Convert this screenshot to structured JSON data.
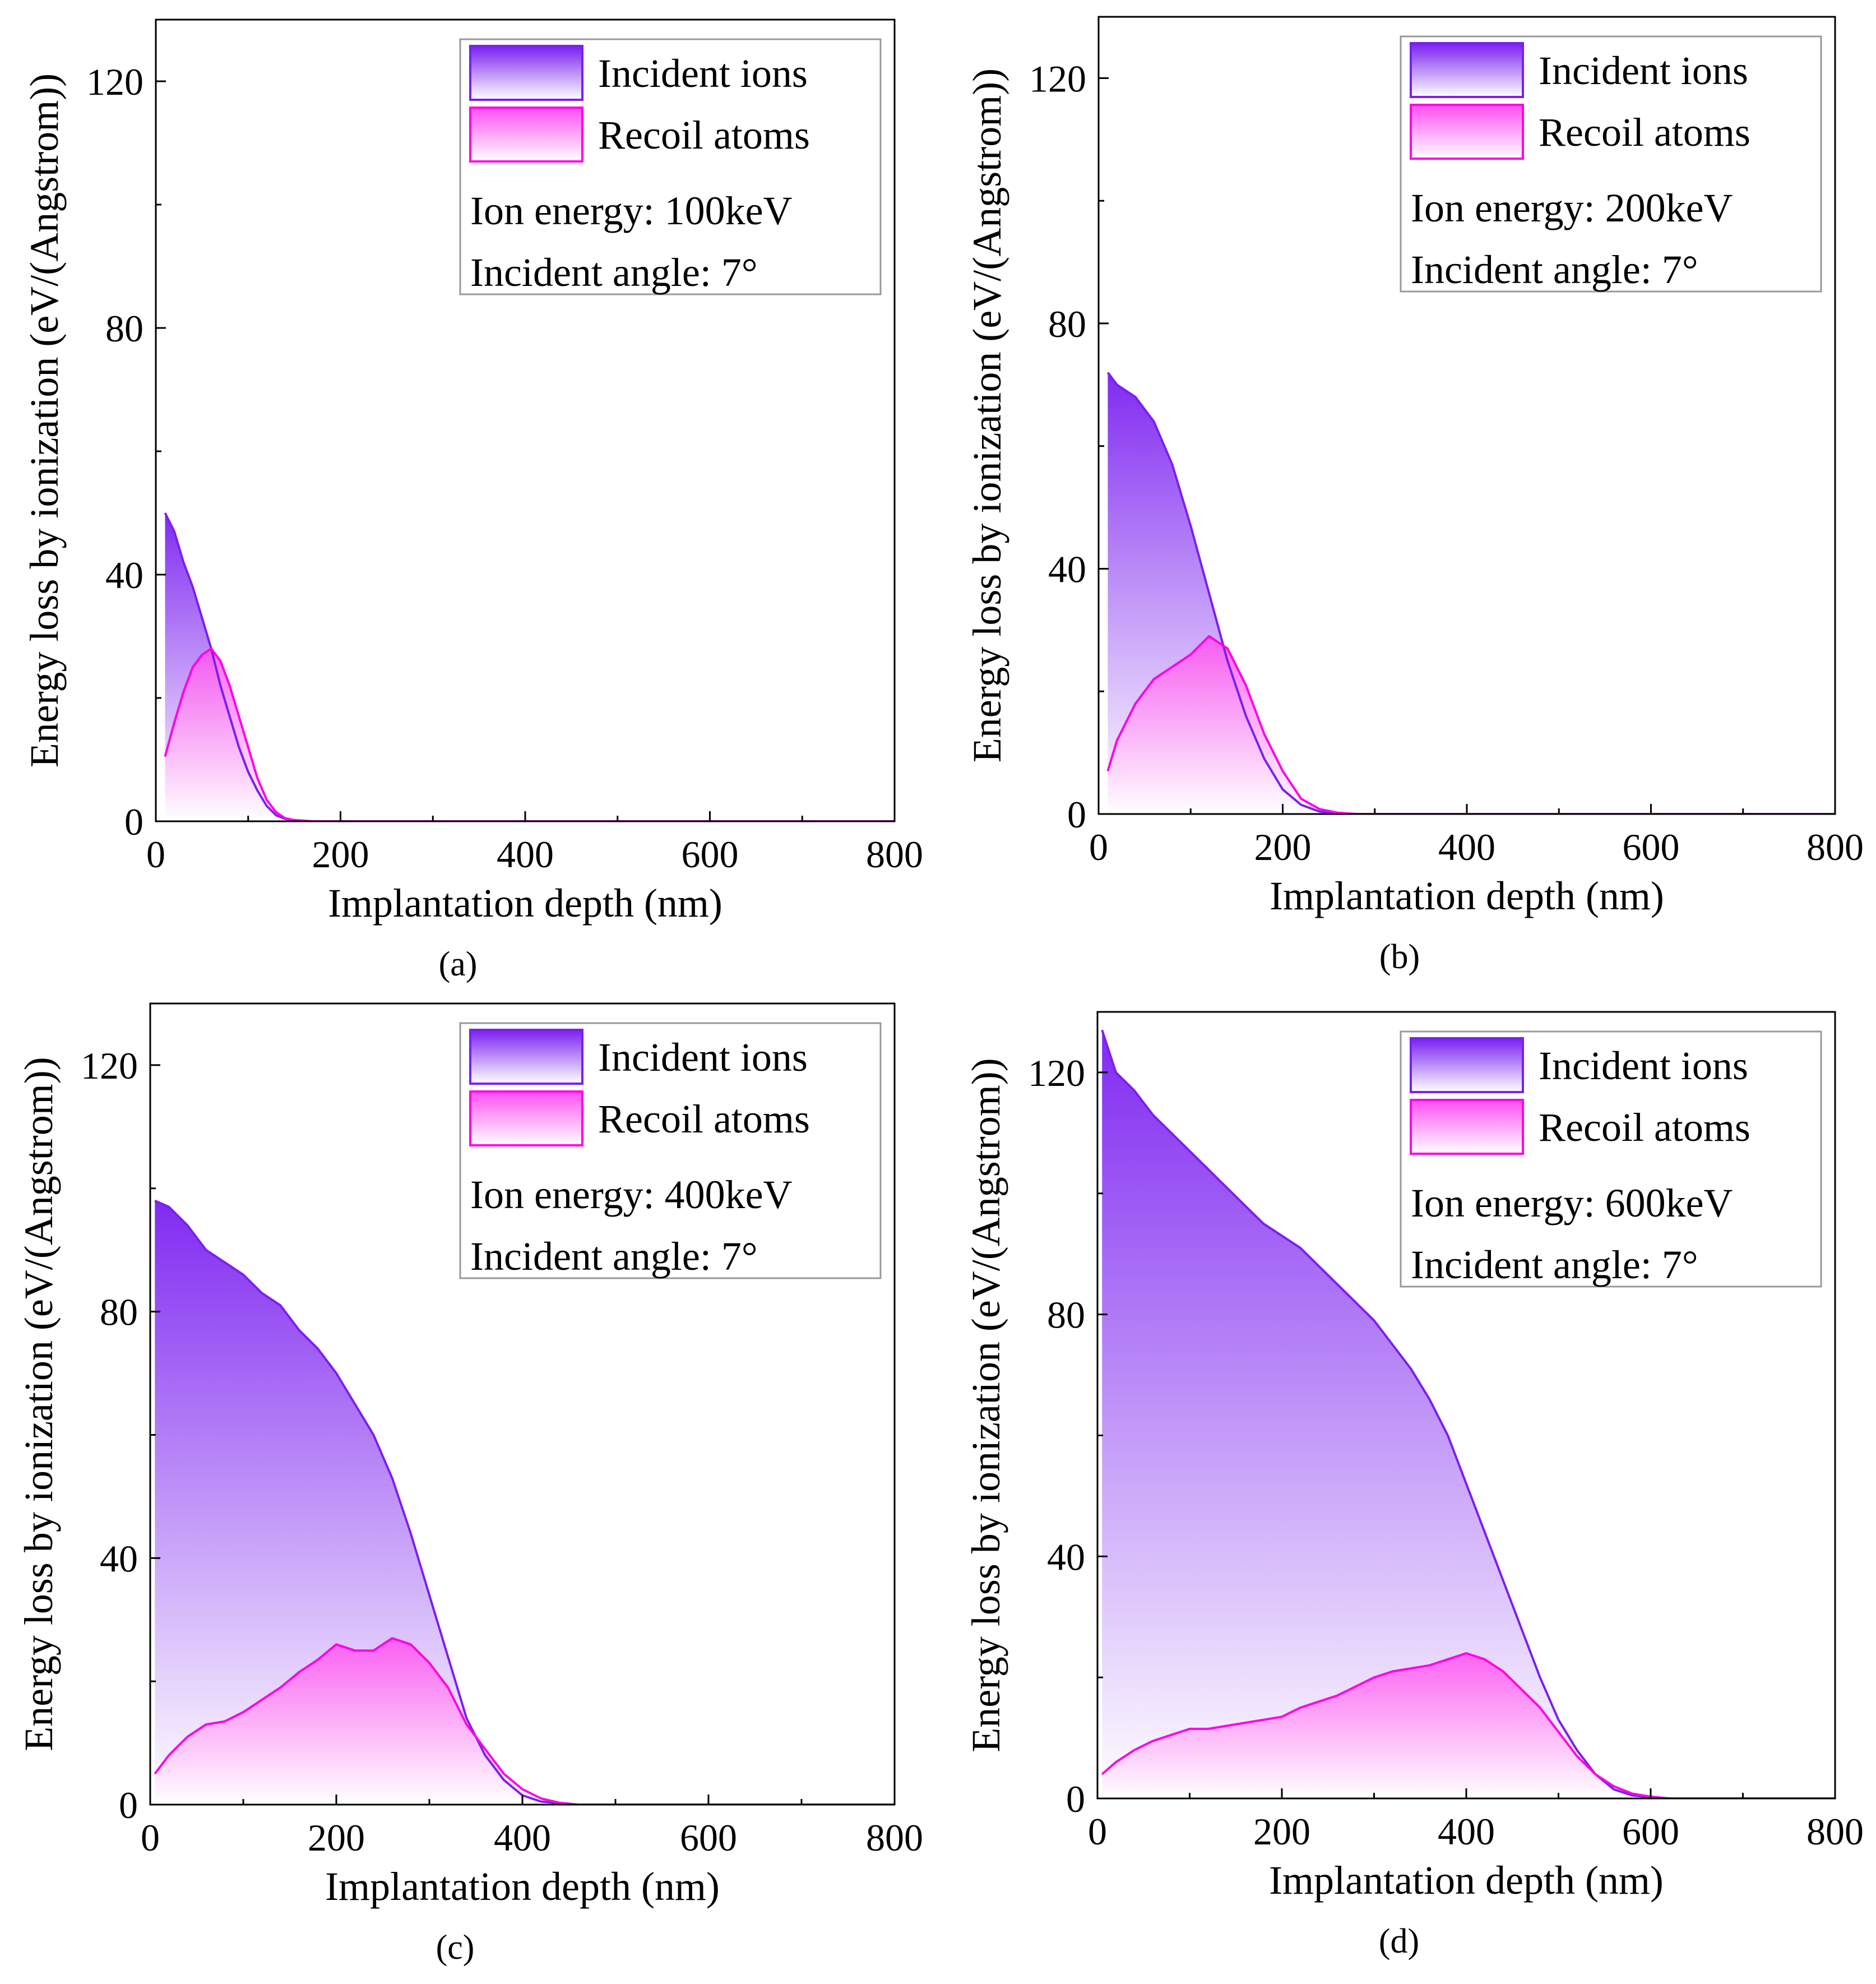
{
  "colors": {
    "incident_line": "#7a1ff0",
    "incident_fill_top": "#7a1ff0",
    "incident_fill_bottom": "#ffffff",
    "recoil_line": "#ff00e6",
    "recoil_fill_top": "#ff4ef0",
    "recoil_fill_bottom": "#ffffff"
  },
  "chart_data": [
    {
      "type": "area",
      "panel_label": "(a)",
      "xlabel": "Implantation depth (nm)",
      "ylabel": "Energy loss by ionization (eV/(Angstrom))",
      "xlim": [
        0,
        800
      ],
      "ylim": [
        0,
        130
      ],
      "xticks": [
        0,
        200,
        400,
        600,
        800
      ],
      "yticks": [
        0,
        40,
        80,
        120
      ],
      "legend_position": "top-right",
      "legend": [
        "Incident ions",
        "Recoil atoms"
      ],
      "annotations": [
        "Ion energy: 100keV",
        "Incident angle: 7°"
      ],
      "series": [
        {
          "name": "Incident ions",
          "x": [
            10,
            20,
            30,
            40,
            50,
            60,
            70,
            80,
            90,
            100,
            110,
            120,
            130,
            140,
            150,
            170,
            200,
            300,
            400,
            600,
            800
          ],
          "y": [
            50,
            47,
            42,
            38,
            33,
            28,
            22,
            17,
            12,
            8,
            5,
            2.5,
            1,
            0.4,
            0.1,
            0,
            0,
            0,
            0,
            0,
            0
          ]
        },
        {
          "name": "Recoil atoms",
          "x": [
            10,
            20,
            30,
            40,
            50,
            60,
            70,
            80,
            90,
            100,
            110,
            120,
            130,
            140,
            150,
            170,
            200,
            300,
            400,
            600,
            800
          ],
          "y": [
            10.5,
            16,
            21,
            25,
            27,
            28,
            26,
            22,
            17,
            12,
            7,
            3.5,
            1.5,
            0.5,
            0.2,
            0,
            0,
            0,
            0,
            0,
            0
          ]
        }
      ]
    },
    {
      "type": "area",
      "panel_label": "(b)",
      "xlabel": "Implantation depth (nm)",
      "ylabel": "Energy loss by ionization (eV/(Angstrom))",
      "xlim": [
        0,
        800
      ],
      "ylim": [
        0,
        130
      ],
      "xticks": [
        0,
        200,
        400,
        600,
        800
      ],
      "yticks": [
        0,
        40,
        80,
        120
      ],
      "legend_position": "top-right",
      "legend": [
        "Incident ions",
        "Recoil atoms"
      ],
      "annotations": [
        "Ion energy: 200keV",
        "Incident angle: 7°"
      ],
      "series": [
        {
          "name": "Incident ions",
          "x": [
            10,
            20,
            40,
            60,
            80,
            100,
            120,
            140,
            160,
            180,
            200,
            220,
            240,
            260,
            280,
            300,
            400,
            600,
            800
          ],
          "y": [
            72,
            70,
            68,
            64,
            57,
            47,
            36,
            25,
            16,
            9,
            4,
            1.5,
            0.4,
            0.1,
            0,
            0,
            0,
            0,
            0
          ]
        },
        {
          "name": "Recoil atoms",
          "x": [
            10,
            20,
            40,
            60,
            80,
            100,
            120,
            140,
            160,
            180,
            200,
            220,
            240,
            260,
            280,
            300,
            400,
            600,
            800
          ],
          "y": [
            7,
            12,
            18,
            22,
            24,
            26,
            29,
            27,
            21,
            13,
            7,
            2.5,
            0.8,
            0.2,
            0,
            0,
            0,
            0,
            0
          ]
        }
      ]
    },
    {
      "type": "area",
      "panel_label": "(c)",
      "xlabel": "Implantation depth (nm)",
      "ylabel": "Energy loss by ionization (eV/(Angstrom))",
      "xlim": [
        0,
        800
      ],
      "ylim": [
        0,
        130
      ],
      "xticks": [
        0,
        200,
        400,
        600,
        800
      ],
      "yticks": [
        0,
        40,
        80,
        120
      ],
      "legend_position": "top-right",
      "legend": [
        "Incident ions",
        "Recoil atoms"
      ],
      "annotations": [
        "Ion energy: 400keV",
        "Incident angle: 7°"
      ],
      "series": [
        {
          "name": "Incident ions",
          "x": [
            5,
            20,
            40,
            60,
            80,
            100,
            120,
            140,
            160,
            180,
            200,
            220,
            240,
            260,
            280,
            300,
            320,
            340,
            360,
            380,
            400,
            420,
            440,
            460,
            500,
            600,
            800
          ],
          "y": [
            98,
            97,
            94,
            90,
            88,
            86,
            83,
            81,
            77,
            74,
            70,
            65,
            60,
            53,
            44,
            34,
            24,
            14,
            8,
            4,
            1.5,
            0.5,
            0.2,
            0,
            0,
            0,
            0
          ]
        },
        {
          "name": "Recoil atoms",
          "x": [
            5,
            20,
            40,
            60,
            80,
            100,
            120,
            140,
            160,
            180,
            200,
            220,
            240,
            260,
            280,
            300,
            320,
            340,
            360,
            380,
            400,
            420,
            440,
            460,
            500,
            600,
            800
          ],
          "y": [
            5,
            8,
            11,
            13,
            13.5,
            15,
            17,
            19,
            21.5,
            23.5,
            26,
            25,
            25,
            27,
            26,
            23,
            19,
            13,
            9,
            5,
            2.5,
            1,
            0.3,
            0,
            0,
            0,
            0
          ]
        }
      ]
    },
    {
      "type": "area",
      "panel_label": "(d)",
      "xlabel": "Implantation depth (nm)",
      "ylabel": "Energy loss by ionization (eV/(Angstrom))",
      "xlim": [
        0,
        800
      ],
      "ylim": [
        0,
        130
      ],
      "xticks": [
        0,
        200,
        400,
        600,
        800
      ],
      "yticks": [
        0,
        40,
        80,
        120
      ],
      "legend_position": "top-right",
      "legend": [
        "Incident ions",
        "Recoil atoms"
      ],
      "annotations": [
        "Ion energy: 600keV",
        "Incident angle: 7°"
      ],
      "series": [
        {
          "name": "Incident ions",
          "x": [
            5,
            20,
            40,
            60,
            80,
            100,
            120,
            140,
            160,
            180,
            200,
            220,
            240,
            260,
            280,
            300,
            320,
            340,
            360,
            380,
            400,
            420,
            440,
            460,
            480,
            500,
            520,
            540,
            560,
            580,
            600,
            620,
            640,
            700,
            800
          ],
          "y": [
            127,
            120,
            117,
            113,
            110,
            107,
            104,
            101,
            98,
            95,
            93,
            91,
            88,
            85,
            82,
            79,
            75,
            71,
            66,
            60,
            52,
            44,
            36,
            28,
            20,
            13,
            8,
            4,
            1.5,
            0.5,
            0.2,
            0,
            0,
            0,
            0
          ]
        },
        {
          "name": "Recoil atoms",
          "x": [
            5,
            20,
            40,
            60,
            80,
            100,
            120,
            140,
            160,
            180,
            200,
            220,
            240,
            260,
            280,
            300,
            320,
            340,
            360,
            380,
            400,
            420,
            440,
            460,
            480,
            500,
            520,
            540,
            560,
            580,
            600,
            620,
            640,
            700,
            800
          ],
          "y": [
            4,
            6,
            8,
            9.5,
            10.5,
            11.5,
            11.5,
            12,
            12.5,
            13,
            13.5,
            15,
            16,
            17,
            18.5,
            20,
            21,
            21.5,
            22,
            23,
            24,
            23,
            21,
            18,
            15,
            11,
            7,
            4,
            2,
            0.8,
            0.3,
            0,
            0,
            0,
            0
          ]
        }
      ]
    }
  ]
}
